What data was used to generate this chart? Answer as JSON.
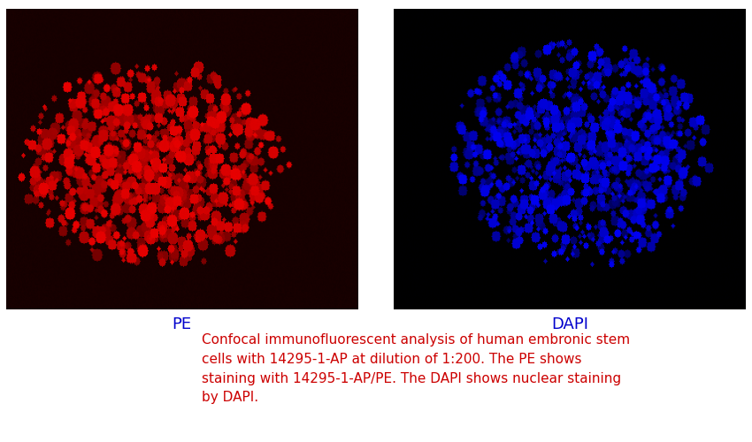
{
  "label_left": "PE",
  "label_right": "DAPI",
  "label_color": "#0000CC",
  "caption": "Confocal immunofluorescent analysis of human embronic stem\ncells with 14295-1-AP at dilution of 1:200. The PE shows\nstaining with 14295-1-AP/PE. The DAPI shows nuclear staining\nby DAPI.",
  "caption_color": "#CC0000",
  "panel_bg": "#ffffff",
  "caption_fontsize": 11,
  "label_fontsize": 13
}
